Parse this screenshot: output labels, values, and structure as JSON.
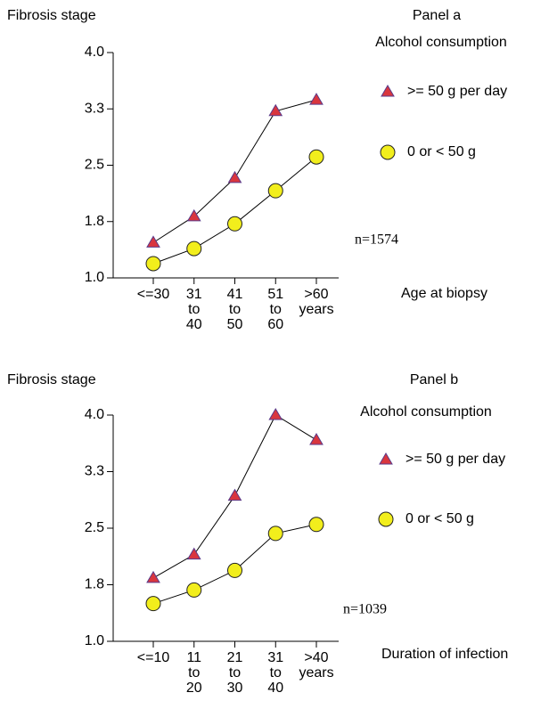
{
  "chart_data": [
    {
      "type": "line",
      "title": "Panel a",
      "ylabel": "Fibrosis stage",
      "xlabel": "Age at biopsy",
      "legend_title": "Alcohol consumption",
      "annotation": "n=1574",
      "categories": [
        "<=30",
        "31 to 40",
        "41 to 50",
        "51 to 60",
        ">60 years"
      ],
      "series": [
        {
          "name": ">= 50 g per day",
          "color": "#d9363e",
          "marker": "triangle",
          "values": [
            1.47,
            1.82,
            2.33,
            3.22,
            3.37
          ]
        },
        {
          "name": "0 or < 50 g",
          "color": "#f2ee1c",
          "marker": "circle",
          "values": [
            1.19,
            1.39,
            1.72,
            2.16,
            2.61
          ]
        }
      ],
      "ylim": [
        1,
        4
      ],
      "yticks": [
        {
          "value": 1,
          "label": "1.0"
        },
        {
          "value": 1.75,
          "label": "1.8"
        },
        2.5,
        {
          "value": 3.25,
          "label": "3.3"
        },
        {
          "value": 4,
          "label": "4.0"
        }
      ]
    },
    {
      "type": "line",
      "title": "Panel b",
      "ylabel": "Fibrosis stage",
      "xlabel": "Duration of infection",
      "legend_title": "Alcohol consumption",
      "annotation": "n=1039",
      "categories": [
        "<=10",
        "11 to 20",
        "21 to 30",
        "31 to 40",
        ">40 years"
      ],
      "series": [
        {
          "name": ">= 50 g per day",
          "color": "#d9363e",
          "marker": "triangle",
          "values": [
            1.84,
            2.15,
            2.93,
            4.0,
            3.67
          ]
        },
        {
          "name": "0 or < 50 g",
          "color": "#f2ee1c",
          "marker": "circle",
          "values": [
            1.5,
            1.68,
            1.94,
            2.43,
            2.55
          ]
        }
      ],
      "ylim": [
        1,
        4
      ],
      "yticks": [
        {
          "value": 1,
          "label": "1.0"
        },
        {
          "value": 1.75,
          "label": "1.8"
        },
        2.5,
        {
          "value": 3.25,
          "label": "3.3"
        },
        {
          "value": 4,
          "label": "4.0"
        }
      ]
    }
  ]
}
